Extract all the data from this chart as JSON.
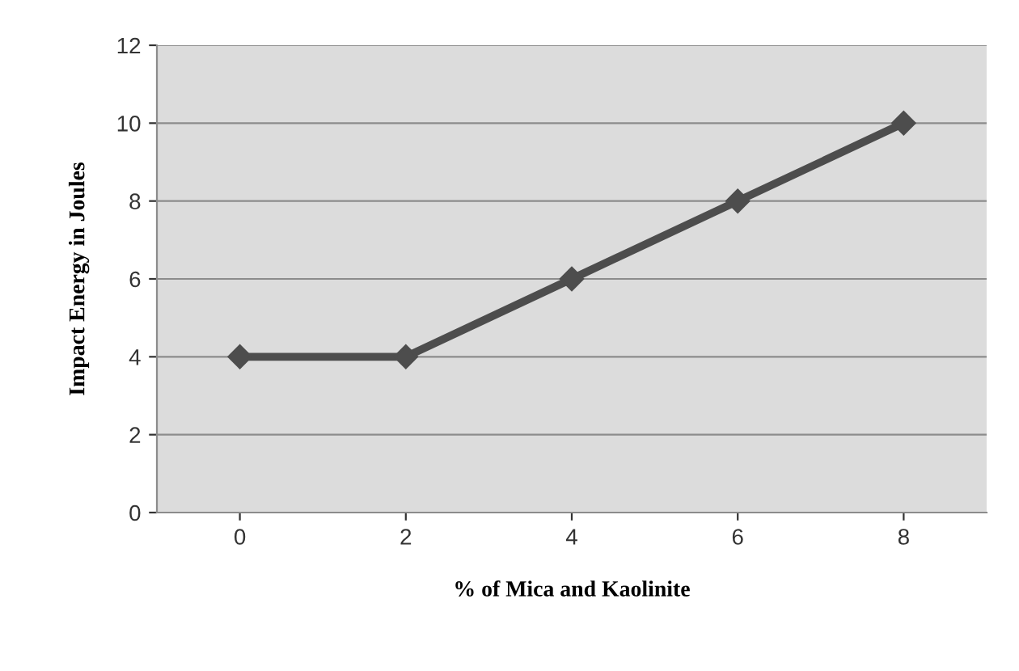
{
  "chart_data": {
    "type": "line",
    "xlabel": "% of Mica and Kaolinite",
    "ylabel": "Impact Energy in Joules",
    "categories": [
      "0",
      "2",
      "4",
      "6",
      "8"
    ],
    "series": [
      {
        "color": "#4d4d4d",
        "values": [
          4,
          4,
          6,
          8,
          10
        ]
      }
    ],
    "ylim": [
      0,
      12
    ],
    "yticks": [
      0,
      2,
      4,
      6,
      8,
      10,
      12
    ],
    "grid": "y",
    "marker": "diamond",
    "line_style": "solid",
    "legend": false
  }
}
